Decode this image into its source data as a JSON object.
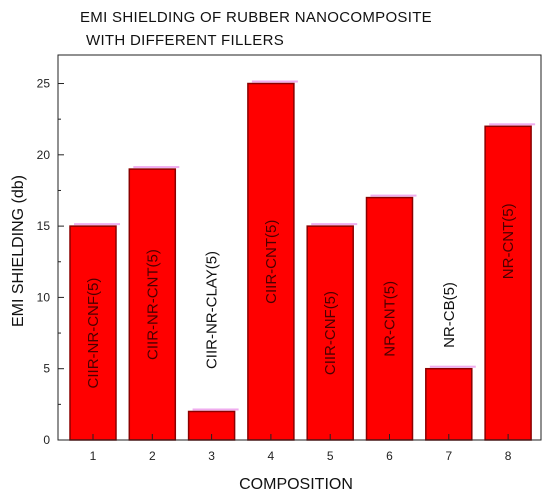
{
  "chart_data": {
    "type": "bar",
    "title": [
      "EMI SHIELDING OF  RUBBER NANOCOMPOSITE",
      "WITH DIFFERENT FILLERS"
    ],
    "xlabel": "COMPOSITION",
    "ylabel": "EMI SHIELDING (db)",
    "categories": [
      "1",
      "2",
      "3",
      "4",
      "5",
      "6",
      "7",
      "8"
    ],
    "values": [
      15,
      19,
      2,
      25,
      15,
      17,
      5,
      22
    ],
    "bar_labels": [
      "CIIR-NR-CNF(5)",
      "CIIR-NR-CNT(5)",
      "CIIR-NR-CLAY(5)",
      "CIIR-CNT(5)",
      "CIIR-CNF(5)",
      "NR-CNT(5)",
      "NR-CB(5)",
      "NR-CNT(5)"
    ],
    "bar_label_inside": [
      true,
      true,
      false,
      true,
      true,
      true,
      false,
      true
    ],
    "yticks": [
      0,
      5,
      10,
      15,
      20,
      25
    ],
    "ylim": [
      0,
      27
    ],
    "grid": false,
    "colors": {
      "bar": "#ff0000",
      "bar_edge": "#8b0000",
      "bar_shadow": "#e88ae8",
      "text": "#111111"
    }
  }
}
